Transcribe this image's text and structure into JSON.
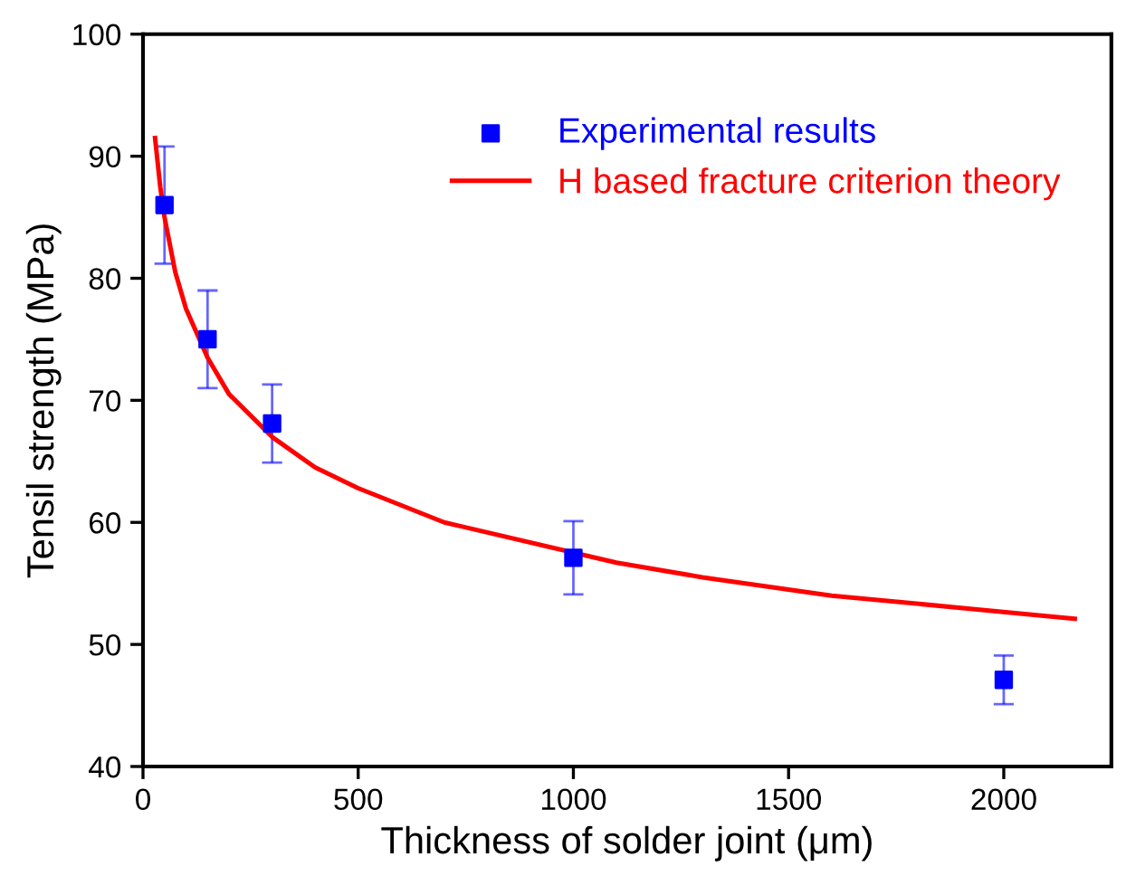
{
  "chart_data": {
    "type": "scatter",
    "xlabel": "Thickness of solder joint (μm)",
    "ylabel": "Tensil strength (MPa)",
    "xlim": [
      0,
      2250
    ],
    "xticks": [
      0,
      500,
      1000,
      1500,
      2000
    ],
    "ylim": [
      40,
      100
    ],
    "yticks": [
      40,
      50,
      60,
      70,
      80,
      90,
      100
    ],
    "grid": false,
    "legend": "top right",
    "series": [
      {
        "name": "Experimental results",
        "color": "#0000ff",
        "marker": "square",
        "x": [
          50,
          150,
          300,
          1000,
          2000
        ],
        "values": [
          86.0,
          75.0,
          68.1,
          57.1,
          47.1
        ],
        "errors": [
          4.8,
          4.0,
          3.2,
          3.0,
          2.0
        ]
      },
      {
        "name": "H based fracture criterion theory",
        "type": "line",
        "color": "#ff0000",
        "marker": "none",
        "line_style": "solid",
        "x": [
          28,
          40,
          50,
          75,
          100,
          150,
          200,
          300,
          400,
          500,
          700,
          1100,
          1300,
          1600,
          1900,
          2165
        ],
        "values": [
          91.5,
          87.5,
          85.0,
          80.5,
          77.5,
          73.5,
          70.5,
          67.0,
          64.5,
          62.8,
          60.0,
          56.7,
          55.5,
          54.0,
          53.0,
          52.1
        ]
      }
    ]
  }
}
